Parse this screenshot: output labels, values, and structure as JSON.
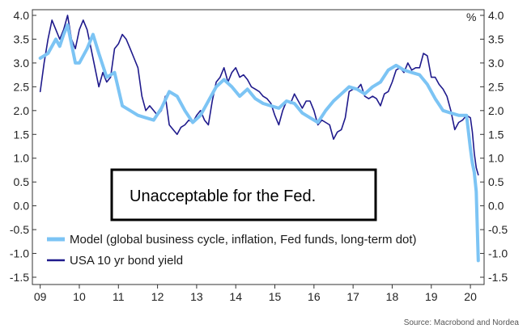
{
  "chart_data": {
    "type": "line",
    "unit_label": "%",
    "source": "Source: Macrobond and Nordea",
    "annotation": "Unacceptable for the Fed.",
    "ylim": [
      -1.5,
      4.0
    ],
    "xlim": [
      2008.8,
      2020.35
    ],
    "yticks": [
      "4.0",
      "3.5",
      "3.0",
      "2.5",
      "2.0",
      "1.5",
      "1.0",
      "0.5",
      "0.0",
      "-0.5",
      "-1.0",
      "-1.5"
    ],
    "xticks": [
      {
        "label": "09",
        "x": 2009.0
      },
      {
        "label": "10",
        "x": 2010.0
      },
      {
        "label": "11",
        "x": 2011.0
      },
      {
        "label": "12",
        "x": 2012.0
      },
      {
        "label": "13",
        "x": 2013.0
      },
      {
        "label": "14",
        "x": 2014.0
      },
      {
        "label": "15",
        "x": 2015.0
      },
      {
        "label": "16",
        "x": 2016.0
      },
      {
        "label": "17",
        "x": 2017.0
      },
      {
        "label": "18",
        "x": 2018.0
      },
      {
        "label": "19",
        "x": 2019.0
      },
      {
        "label": "20",
        "x": 2020.0
      }
    ],
    "grid": false,
    "legend_position": "bottom-left",
    "series": [
      {
        "name": "Model (global business cycle, inflation, Fed funds, long-term dot)",
        "color": "#7cc4f4",
        "x": [
          2009.0,
          2009.2,
          2009.4,
          2009.5,
          2009.6,
          2009.7,
          2009.9,
          2010.0,
          2010.2,
          2010.35,
          2010.5,
          2010.7,
          2010.9,
          2011.1,
          2011.3,
          2011.5,
          2011.7,
          2011.9,
          2012.1,
          2012.3,
          2012.5,
          2012.7,
          2012.9,
          2013.1,
          2013.3,
          2013.5,
          2013.7,
          2013.9,
          2014.1,
          2014.3,
          2014.5,
          2014.7,
          2014.9,
          2015.1,
          2015.3,
          2015.5,
          2015.7,
          2015.9,
          2016.1,
          2016.3,
          2016.5,
          2016.7,
          2016.9,
          2017.1,
          2017.3,
          2017.5,
          2017.7,
          2017.9,
          2018.1,
          2018.3,
          2018.5,
          2018.7,
          2018.9,
          2019.1,
          2019.3,
          2019.5,
          2019.7,
          2019.9,
          2020.0,
          2020.05,
          2020.1,
          2020.15,
          2020.2
        ],
        "y": [
          3.1,
          3.2,
          3.5,
          3.35,
          3.6,
          3.8,
          3.0,
          3.0,
          3.3,
          3.6,
          3.2,
          2.7,
          2.8,
          2.1,
          2.0,
          1.9,
          1.85,
          1.8,
          2.05,
          2.4,
          2.3,
          2.0,
          1.75,
          1.9,
          2.2,
          2.5,
          2.65,
          2.5,
          2.3,
          2.45,
          2.25,
          2.15,
          2.1,
          2.05,
          2.2,
          2.15,
          1.95,
          1.85,
          1.75,
          2.0,
          2.2,
          2.35,
          2.5,
          2.45,
          2.35,
          2.5,
          2.6,
          2.85,
          2.95,
          2.85,
          2.8,
          2.75,
          2.55,
          2.25,
          2.0,
          1.95,
          1.9,
          1.9,
          1.2,
          0.9,
          0.7,
          0.3,
          -1.15
        ]
      },
      {
        "name": "USA 10 yr bond yield",
        "color": "#1f1a8c",
        "x": [
          2009.0,
          2009.1,
          2009.2,
          2009.3,
          2009.4,
          2009.5,
          2009.6,
          2009.7,
          2009.8,
          2009.9,
          2010.0,
          2010.1,
          2010.2,
          2010.3,
          2010.4,
          2010.5,
          2010.6,
          2010.7,
          2010.8,
          2010.9,
          2011.0,
          2011.1,
          2011.2,
          2011.3,
          2011.4,
          2011.5,
          2011.6,
          2011.7,
          2011.8,
          2011.9,
          2012.0,
          2012.1,
          2012.2,
          2012.3,
          2012.4,
          2012.5,
          2012.6,
          2012.7,
          2012.8,
          2012.9,
          2013.0,
          2013.1,
          2013.2,
          2013.3,
          2013.4,
          2013.5,
          2013.6,
          2013.7,
          2013.8,
          2013.9,
          2014.0,
          2014.1,
          2014.2,
          2014.3,
          2014.4,
          2014.5,
          2014.6,
          2014.7,
          2014.8,
          2014.9,
          2015.0,
          2015.1,
          2015.2,
          2015.3,
          2015.4,
          2015.5,
          2015.6,
          2015.7,
          2015.8,
          2015.9,
          2016.0,
          2016.1,
          2016.2,
          2016.3,
          2016.4,
          2016.5,
          2016.6,
          2016.7,
          2016.8,
          2016.9,
          2017.0,
          2017.1,
          2017.2,
          2017.3,
          2017.4,
          2017.5,
          2017.6,
          2017.7,
          2017.8,
          2017.9,
          2018.0,
          2018.1,
          2018.2,
          2018.3,
          2018.4,
          2018.5,
          2018.6,
          2018.7,
          2018.8,
          2018.9,
          2019.0,
          2019.1,
          2019.2,
          2019.3,
          2019.4,
          2019.5,
          2019.6,
          2019.7,
          2019.8,
          2019.9,
          2020.0,
          2020.05,
          2020.1,
          2020.15,
          2020.2
        ],
        "y": [
          2.4,
          3.0,
          3.5,
          3.9,
          3.7,
          3.5,
          3.7,
          4.0,
          3.5,
          3.3,
          3.7,
          3.9,
          3.7,
          3.3,
          2.9,
          2.5,
          2.8,
          2.6,
          2.7,
          3.3,
          3.4,
          3.6,
          3.5,
          3.3,
          3.1,
          2.9,
          2.3,
          2.0,
          2.1,
          2.0,
          1.9,
          2.0,
          2.3,
          1.7,
          1.6,
          1.5,
          1.65,
          1.7,
          1.8,
          1.75,
          1.9,
          2.0,
          1.8,
          1.7,
          2.2,
          2.6,
          2.7,
          2.9,
          2.6,
          2.8,
          2.9,
          2.7,
          2.75,
          2.65,
          2.5,
          2.45,
          2.4,
          2.3,
          2.25,
          2.15,
          1.9,
          1.7,
          2.0,
          2.2,
          2.15,
          2.35,
          2.2,
          2.05,
          2.2,
          2.2,
          2.0,
          1.7,
          1.8,
          1.75,
          1.7,
          1.4,
          1.55,
          1.6,
          1.85,
          2.4,
          2.45,
          2.45,
          2.55,
          2.3,
          2.25,
          2.3,
          2.25,
          2.1,
          2.35,
          2.4,
          2.6,
          2.85,
          2.9,
          2.8,
          3.0,
          2.85,
          2.9,
          2.9,
          3.2,
          3.15,
          2.7,
          2.7,
          2.55,
          2.45,
          2.3,
          2.0,
          1.6,
          1.75,
          1.8,
          1.9,
          1.85,
          1.55,
          1.1,
          0.8,
          0.65
        ]
      }
    ]
  }
}
